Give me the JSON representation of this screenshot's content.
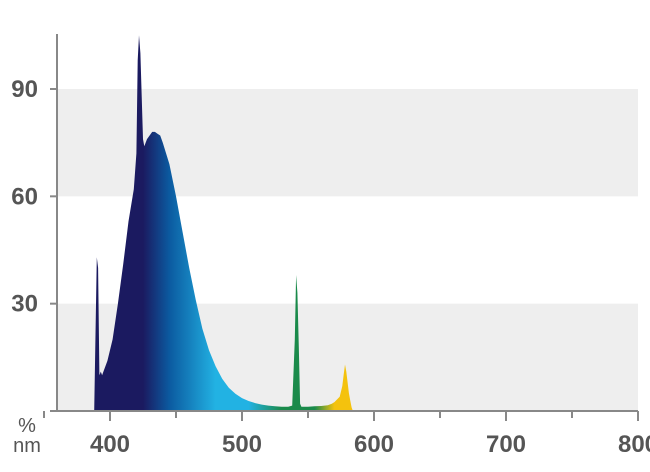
{
  "chart_data": {
    "type": "area",
    "title": "",
    "xlabel": "nm",
    "ylabel": "%",
    "xlim": [
      350,
      800
    ],
    "ylim": [
      0,
      105
    ],
    "x_ticks": [
      400,
      500,
      600,
      700,
      800
    ],
    "y_ticks": [
      30,
      60,
      90
    ],
    "x_tick_labels": [
      "400",
      "500",
      "600",
      "700",
      "800"
    ],
    "y_tick_labels": [
      "30",
      "60",
      "90"
    ],
    "grid": "alternating horizontal bands",
    "legend": "none",
    "series": [
      {
        "values_x": [
          388,
          390,
          391,
          392,
          393,
          394,
          395,
          398,
          402,
          406,
          410,
          414,
          418,
          420,
          421,
          422,
          423,
          424,
          425,
          426,
          428,
          430,
          432,
          434,
          436,
          438,
          440,
          445,
          450,
          455,
          460,
          465,
          470,
          475,
          480,
          485,
          490,
          495,
          500,
          505,
          510,
          515,
          520,
          525,
          530,
          535,
          538,
          540,
          541,
          542,
          543,
          544,
          545,
          550,
          555,
          560,
          565,
          568,
          570,
          574,
          576,
          577,
          578,
          579,
          580,
          581,
          582,
          583,
          584
        ],
        "values_y": [
          0,
          43,
          40,
          10,
          11,
          10,
          11,
          14,
          20,
          30,
          41,
          53,
          62,
          72,
          98,
          105,
          100,
          88,
          76,
          74,
          76,
          77,
          78,
          78,
          77.5,
          77,
          75,
          69,
          60,
          50,
          40,
          31,
          23,
          17,
          12.5,
          9,
          6.5,
          4.8,
          3.6,
          2.8,
          2.2,
          1.8,
          1.5,
          1.3,
          1.2,
          1.2,
          1.5,
          20,
          38,
          33,
          18,
          2,
          1.2,
          1.2,
          1.3,
          1.4,
          1.6,
          2,
          2.5,
          4,
          7,
          10,
          13,
          11,
          8,
          5,
          3,
          1,
          0
        ]
      }
    ],
    "colors": {
      "band": "#eeeeee",
      "axis": "#888888",
      "deep_violet": "#1b1a60",
      "blue": "#0b5aa0",
      "cyan": "#22b2e3",
      "green": "#1a8a4a",
      "yellow": "#f4c20d"
    }
  }
}
